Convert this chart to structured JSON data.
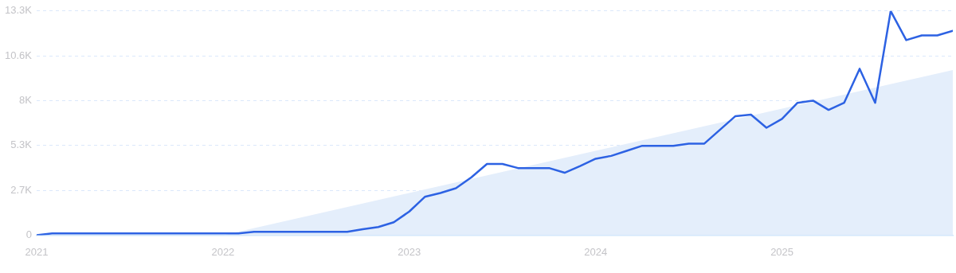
{
  "chart_data": {
    "type": "line",
    "x": [
      "2021-01",
      "2021-02",
      "2021-03",
      "2021-04",
      "2021-05",
      "2021-06",
      "2021-07",
      "2021-08",
      "2021-09",
      "2021-10",
      "2021-11",
      "2021-12",
      "2022-01",
      "2022-02",
      "2022-03",
      "2022-04",
      "2022-05",
      "2022-06",
      "2022-07",
      "2022-08",
      "2022-09",
      "2022-10",
      "2022-11",
      "2022-12",
      "2023-01",
      "2023-02",
      "2023-03",
      "2023-04",
      "2023-05",
      "2023-06",
      "2023-07",
      "2023-08",
      "2023-09",
      "2023-10",
      "2023-11",
      "2023-12",
      "2024-01",
      "2024-02",
      "2024-03",
      "2024-04",
      "2024-05",
      "2024-06",
      "2024-07",
      "2024-08",
      "2024-09",
      "2024-10",
      "2024-11",
      "2024-12",
      "2025-01",
      "2025-02",
      "2025-03",
      "2025-04",
      "2025-05",
      "2025-06",
      "2025-07",
      "2025-08",
      "2025-09",
      "2025-10",
      "2025-11",
      "2025-12"
    ],
    "series": [
      {
        "type": "area",
        "color": "#e4eefb",
        "x": [
          "2022-01",
          "2025-12"
        ],
        "values": [
          0,
          9800
        ]
      },
      {
        "color": "#2d62e3",
        "values": [
          0,
          100,
          100,
          100,
          100,
          100,
          100,
          100,
          100,
          100,
          100,
          100,
          100,
          100,
          200,
          200,
          200,
          200,
          200,
          200,
          200,
          350,
          480,
          760,
          1400,
          2270,
          2500,
          2780,
          3430,
          4220,
          4220,
          3980,
          3980,
          3980,
          3700,
          4100,
          4530,
          4700,
          5000,
          5300,
          5300,
          5300,
          5430,
          5430,
          6250,
          7060,
          7150,
          6370,
          6900,
          7850,
          7980,
          7430,
          7850,
          9870,
          7850,
          13300,
          11570,
          11850,
          11850,
          12120
        ]
      }
    ],
    "xlim": [
      "2021-01",
      "2025-12"
    ],
    "xticks": [
      "2021",
      "2022",
      "2023",
      "2024",
      "2025"
    ],
    "ylim": [
      0,
      13300
    ],
    "yticks": [
      0,
      {
        "value": 2660,
        "label": "2.7K"
      },
      {
        "value": 5320,
        "label": "5.3K"
      },
      {
        "value": 7980,
        "label": "8K"
      },
      {
        "value": 10640,
        "label": "10.6K"
      },
      {
        "value": 13300,
        "label": "13.3K"
      }
    ],
    "grid": "y",
    "marker": "none",
    "line_style": "solid",
    "legend": false
  }
}
